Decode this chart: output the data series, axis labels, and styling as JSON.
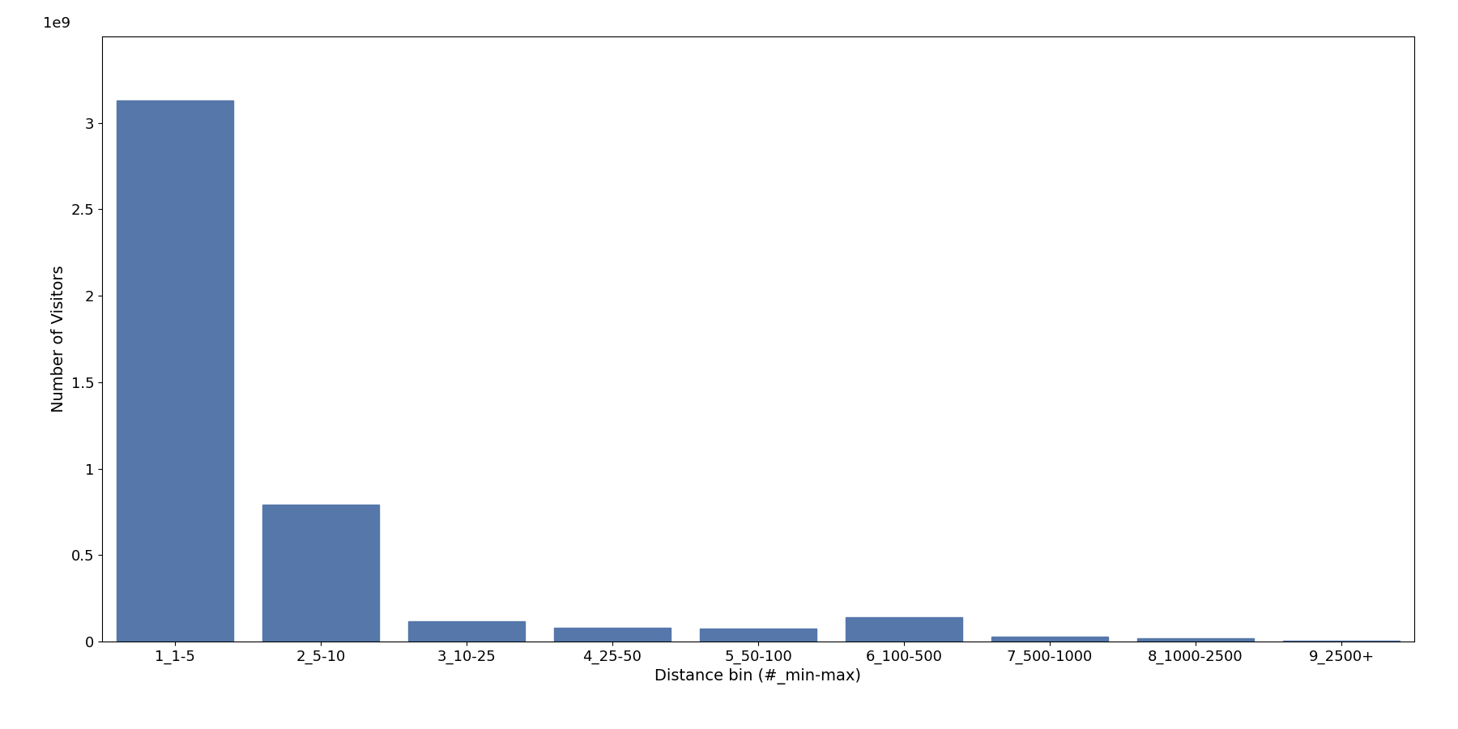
{
  "categories": [
    "1_1-5",
    "2_5-10",
    "3_10-25",
    "4_25-50",
    "5_50-100",
    "6_100-500",
    "7_500-1000",
    "8_1000-2500",
    "9_2500+"
  ],
  "values": [
    3130000000,
    790000000,
    115000000,
    80000000,
    75000000,
    140000000,
    30000000,
    20000000,
    5000000
  ],
  "bar_color": "#5577aa",
  "xlabel": "Distance bin (#_min-max)",
  "ylabel": "Number of Visitors",
  "ylim": [
    0,
    3500000000.0
  ],
  "yticks": [
    0,
    500000000.0,
    1000000000.0,
    1500000000.0,
    2000000000.0,
    2500000000.0,
    3000000000.0
  ],
  "background_color": "#ffffff",
  "tick_fontsize": 13,
  "label_fontsize": 14,
  "bar_width": 0.8
}
